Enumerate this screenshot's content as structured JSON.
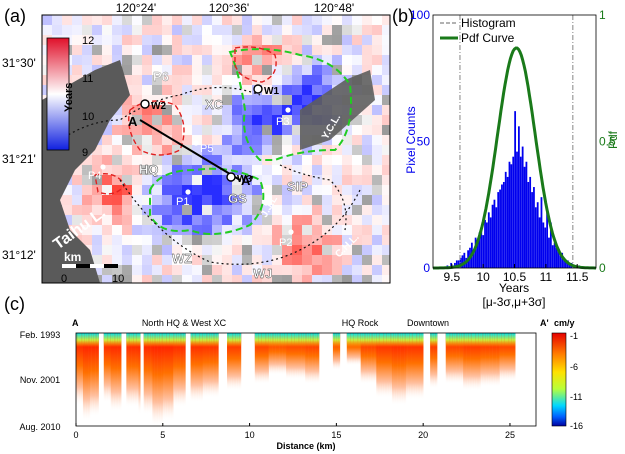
{
  "panel_a": {
    "letter": "(a)",
    "lon_ticks": [
      "120°24'",
      "120°36'",
      "120°48'"
    ],
    "lat_ticks": [
      "31°30'",
      "31°21'",
      "31°12'"
    ],
    "colorbar": {
      "title": "Years",
      "ticks": [
        "12",
        "11",
        "10",
        "9"
      ]
    },
    "district_labels": [
      "P6",
      "XC",
      "HQ",
      "GS",
      "SIP",
      "WZ",
      "WJ"
    ],
    "point_labels": [
      "W1",
      "W2",
      "W3",
      "P1",
      "P2",
      "P3",
      "P4",
      "P5"
    ],
    "profile_labels": [
      "A",
      "A'"
    ],
    "lake_label": "Taihu L.",
    "road_labels": [
      "Y.C.L.",
      "J.J.L",
      "C.H.L."
    ],
    "scalebar": {
      "unit": "km",
      "ticks": [
        "0",
        "10"
      ]
    }
  },
  "panel_b": {
    "letter": "(b)",
    "legend": [
      "Histogram",
      "Pdf Curve"
    ],
    "colors": {
      "histogram": "#0000ee",
      "pdf": "#1a7a1a"
    },
    "chart_data": {
      "type": "bar",
      "xlabel": "Years",
      "xlabel2": "[μ-3σ,μ+3σ]",
      "ylabel": "Pixel Counts",
      "ylabel_right": "Pdf",
      "xlim": [
        9.2,
        11.8
      ],
      "ylim": [
        0,
        100
      ],
      "ylim_right": [
        0,
        1
      ],
      "xticks": [
        "9.5",
        "10",
        "10.5",
        "11",
        "11.5"
      ],
      "yticks": [
        "0",
        "50",
        "100"
      ],
      "yticks_right": [
        "0",
        "0.5",
        "1"
      ],
      "sigma_lines": [
        9.63,
        11.43
      ],
      "pdf": {
        "mean": 10.53,
        "sigma": 0.3,
        "peak": 0.87
      },
      "x": [
        9.43,
        9.46,
        9.49,
        9.52,
        9.55,
        9.58,
        9.61,
        9.64,
        9.67,
        9.7,
        9.73,
        9.76,
        9.79,
        9.82,
        9.85,
        9.88,
        9.91,
        9.94,
        9.97,
        10.0,
        10.03,
        10.06,
        10.09,
        10.12,
        10.15,
        10.18,
        10.21,
        10.24,
        10.27,
        10.3,
        10.33,
        10.36,
        10.39,
        10.42,
        10.45,
        10.48,
        10.51,
        10.54,
        10.57,
        10.6,
        10.63,
        10.66,
        10.69,
        10.72,
        10.75,
        10.78,
        10.81,
        10.84,
        10.87,
        10.9,
        10.93,
        10.96,
        10.99,
        11.02,
        11.05,
        11.08,
        11.11,
        11.14,
        11.17,
        11.2,
        11.23,
        11.26,
        11.29,
        11.32,
        11.35,
        11.38,
        11.41,
        11.44,
        11.47,
        11.5,
        11.53
      ],
      "values": [
        1,
        0,
        2,
        1,
        2,
        3,
        3,
        4,
        5,
        6,
        4,
        7,
        8,
        10,
        7,
        12,
        10,
        14,
        16,
        13,
        19,
        18,
        22,
        20,
        25,
        27,
        24,
        30,
        31,
        33,
        34,
        38,
        36,
        42,
        41,
        44,
        62,
        46,
        56,
        44,
        48,
        40,
        42,
        34,
        36,
        30,
        32,
        24,
        26,
        20,
        28,
        18,
        16,
        22,
        12,
        18,
        9,
        10,
        8,
        7,
        5,
        6,
        4,
        3,
        3,
        2,
        2,
        1,
        1,
        0,
        1
      ]
    }
  },
  "panel_c": {
    "letter": "(c)",
    "left_label": "A",
    "right_label": "A'",
    "unit": "cm/y",
    "region_labels": [
      "North HQ & West XC",
      "HQ Rock",
      "Downtown"
    ],
    "y_ticks": [
      "Feb. 1993",
      "Nov. 2001",
      "Aug. 2010"
    ],
    "x_ticks": [
      "0",
      "5",
      "10",
      "15",
      "20",
      "25"
    ],
    "xlabel": "Distance (km)",
    "colorbar_ticks": [
      "-1",
      "-6",
      "-11",
      "-16"
    ],
    "xlim": [
      0,
      26.5
    ],
    "segments": [
      [
        0,
        1.3
      ],
      [
        1.6,
        2.6
      ],
      [
        2.9,
        3.7
      ],
      [
        3.9,
        6.2
      ],
      [
        6.6,
        8.1
      ],
      [
        8.7,
        9.4
      ],
      [
        10.3,
        13.9
      ],
      [
        14.8,
        15.2
      ],
      [
        15.6,
        20.0
      ],
      [
        20.4,
        20.8
      ],
      [
        21.3,
        25.3
      ]
    ],
    "subsidence": [
      {
        "x": 0.2,
        "depth": 0.78
      },
      {
        "x": 0.5,
        "depth": 0.95
      },
      {
        "x": 1.0,
        "depth": 0.9
      },
      {
        "x": 1.8,
        "depth": 0.75
      },
      {
        "x": 2.2,
        "depth": 0.85
      },
      {
        "x": 3.2,
        "depth": 0.8
      },
      {
        "x": 4.0,
        "depth": 0.88
      },
      {
        "x": 4.6,
        "depth": 1.0
      },
      {
        "x": 5.2,
        "depth": 0.95
      },
      {
        "x": 5.9,
        "depth": 0.8
      },
      {
        "x": 6.9,
        "depth": 0.75
      },
      {
        "x": 7.6,
        "depth": 0.7
      },
      {
        "x": 8.9,
        "depth": 0.62
      },
      {
        "x": 10.5,
        "depth": 0.55
      },
      {
        "x": 11.5,
        "depth": 0.45
      },
      {
        "x": 12.6,
        "depth": 0.5
      },
      {
        "x": 13.6,
        "depth": 0.55
      },
      {
        "x": 15.0,
        "depth": 0.4
      },
      {
        "x": 15.9,
        "depth": 0.35
      },
      {
        "x": 16.8,
        "depth": 0.55
      },
      {
        "x": 17.8,
        "depth": 0.7
      },
      {
        "x": 18.6,
        "depth": 0.78
      },
      {
        "x": 19.4,
        "depth": 0.72
      },
      {
        "x": 20.6,
        "depth": 0.6
      },
      {
        "x": 21.8,
        "depth": 0.55
      },
      {
        "x": 22.8,
        "depth": 0.62
      },
      {
        "x": 23.8,
        "depth": 0.58
      },
      {
        "x": 25.0,
        "depth": 0.52
      }
    ]
  }
}
